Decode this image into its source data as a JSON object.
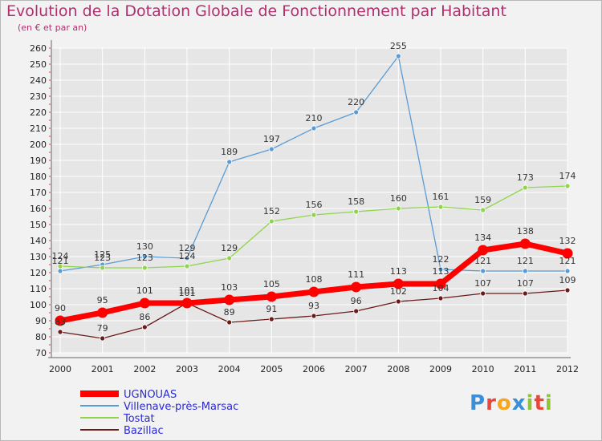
{
  "title": "Evolution de la Dotation Globale de Fonctionnement par Habitant",
  "subtitle": "(en € et par an)",
  "logo_text": "Proxiti",
  "colors": {
    "UGNOUAS": "#ff0000",
    "Villenave-près-Marsac": "#5b9bd5",
    "Tostat": "#8fd44a",
    "Bazillac": "#6b1a1a",
    "background": "#f2f2f2",
    "grid": "#ffffff",
    "axis_text": "#222222",
    "title": "#b0306e"
  },
  "chart_data": {
    "type": "line",
    "title": "Evolution de la Dotation Globale de Fonctionnement par Habitant",
    "subtitle": "(en € et par an)",
    "xlabel": "",
    "ylabel": "",
    "x": [
      "2000",
      "2001",
      "2002",
      "2003",
      "2004",
      "2005",
      "2006",
      "2007",
      "2008",
      "2009",
      "2010",
      "2011",
      "2012"
    ],
    "ylim": [
      70,
      260
    ],
    "yticks": [
      70,
      80,
      90,
      100,
      110,
      120,
      130,
      140,
      150,
      160,
      170,
      180,
      190,
      200,
      210,
      220,
      230,
      240,
      250,
      260
    ],
    "grid": true,
    "legend_position": "bottom-left",
    "series": [
      {
        "name": "UGNOUAS",
        "values": [
          90,
          95,
          101,
          101,
          103,
          105,
          108,
          111,
          113,
          113,
          134,
          138,
          132
        ]
      },
      {
        "name": "Villenave-près-Marsac",
        "values": [
          121,
          125,
          130,
          129,
          189,
          197,
          210,
          220,
          255,
          122,
          121,
          121,
          121
        ]
      },
      {
        "name": "Tostat",
        "values": [
          124,
          123,
          123,
          124,
          129,
          152,
          156,
          158,
          160,
          161,
          159,
          173,
          174
        ]
      },
      {
        "name": "Bazillac",
        "values": [
          83,
          79,
          86,
          101,
          89,
          91,
          93,
          96,
          102,
          104,
          107,
          107,
          109
        ]
      }
    ]
  }
}
